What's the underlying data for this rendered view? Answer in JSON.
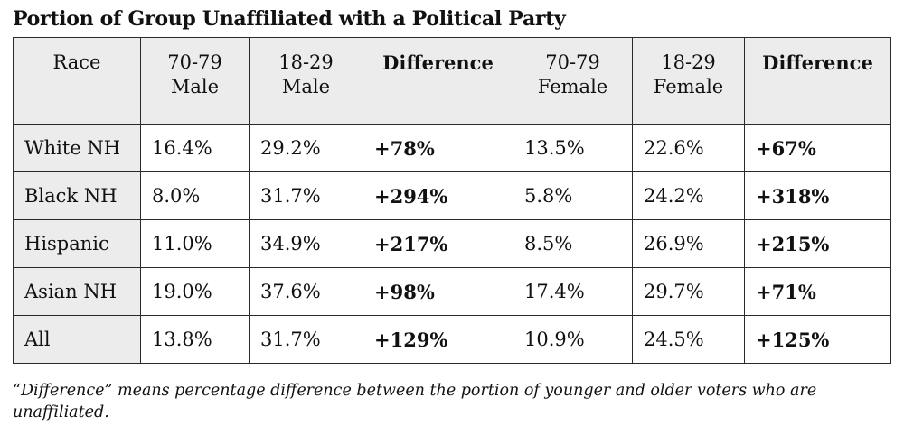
{
  "title": "Portion of Group Unaffiliated with a Political Party",
  "chart_data": {
    "type": "table",
    "title": "Portion of Group Unaffiliated with a Political Party",
    "columns": [
      {
        "key": "race",
        "label": "Race",
        "bold": false
      },
      {
        "key": "male_70_79",
        "label": "70-79 Male",
        "bold": false
      },
      {
        "key": "male_18_29",
        "label": "18-29 Male",
        "bold": false
      },
      {
        "key": "male_diff",
        "label": "Difference",
        "bold": true
      },
      {
        "key": "female_70_79",
        "label": "70-79 Female",
        "bold": false
      },
      {
        "key": "female_18_29",
        "label": "18-29 Female",
        "bold": false
      },
      {
        "key": "female_diff",
        "label": "Difference",
        "bold": true
      }
    ],
    "rows": [
      {
        "race": "White NH",
        "male_70_79": "16.4%",
        "male_18_29": "29.2%",
        "male_diff": "+78%",
        "female_70_79": "13.5%",
        "female_18_29": "22.6%",
        "female_diff": "+67%"
      },
      {
        "race": "Black NH",
        "male_70_79": "8.0%",
        "male_18_29": "31.7%",
        "male_diff": "+294%",
        "female_70_79": "5.8%",
        "female_18_29": "24.2%",
        "female_diff": "+318%"
      },
      {
        "race": "Hispanic",
        "male_70_79": "11.0%",
        "male_18_29": "34.9%",
        "male_diff": "+217%",
        "female_70_79": "8.5%",
        "female_18_29": "26.9%",
        "female_diff": "+215%"
      },
      {
        "race": "Asian NH",
        "male_70_79": "19.0%",
        "male_18_29": "37.6%",
        "male_diff": "+98%",
        "female_70_79": "17.4%",
        "female_18_29": "29.7%",
        "female_diff": "+71%"
      },
      {
        "race": "All",
        "male_70_79": "13.8%",
        "male_18_29": "31.7%",
        "male_diff": "+129%",
        "female_70_79": "10.9%",
        "female_18_29": "24.5%",
        "female_diff": "+125%"
      }
    ]
  },
  "note": "“Difference” means percentage difference between the portion of younger and older voters who are unaffiliated.",
  "colors": {
    "header_bg": "#ececec",
    "border": "#2a2a2a",
    "text": "#111111"
  }
}
